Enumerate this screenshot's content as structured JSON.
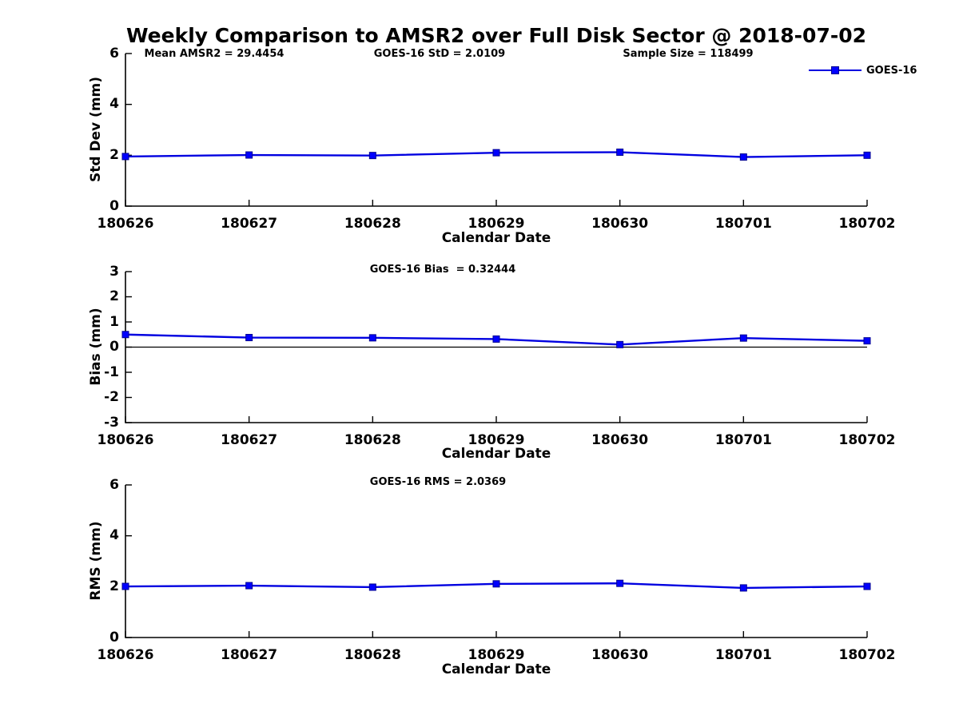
{
  "title": "Weekly Comparison to AMSR2 over Full Disk Sector @ 2018-07-02",
  "legend": {
    "label": "GOES-16"
  },
  "style": {
    "line_color": "#0000E0",
    "marker_fill": "#0000FF",
    "marker_edge": "#000090",
    "axis_color": "#000000",
    "text_color": "#000000"
  },
  "chart_data": [
    {
      "type": "line",
      "name": "std-dev-plot",
      "annotations": [
        "Mean AMSR2 = 29.4454",
        "GOES-16 StD = 2.0109",
        "Sample Size = 118499"
      ],
      "xlabel": "Calendar Date",
      "ylabel": "Std Dev (mm)",
      "ylim": [
        0,
        6
      ],
      "yticks": [
        6,
        4,
        2,
        0
      ],
      "categories": [
        "180626",
        "180627",
        "180628",
        "180629",
        "180630",
        "180701",
        "180702"
      ],
      "series": [
        {
          "name": "GOES-16",
          "values": [
            1.95,
            2.01,
            1.99,
            2.1,
            2.12,
            1.93,
            2.0
          ]
        }
      ],
      "legend_position": "top-right",
      "grid": false
    },
    {
      "type": "line",
      "name": "bias-plot",
      "annotations": [
        "GOES-16 Bias  = 0.32444"
      ],
      "xlabel": "Calendar Date",
      "ylabel": "Bias (mm)",
      "ylim": [
        -3,
        3
      ],
      "yticks": [
        3,
        2,
        1,
        0,
        -1,
        -2,
        -3
      ],
      "zero_line": true,
      "categories": [
        "180626",
        "180627",
        "180628",
        "180629",
        "180630",
        "180701",
        "180702"
      ],
      "series": [
        {
          "name": "GOES-16",
          "values": [
            0.5,
            0.38,
            0.37,
            0.32,
            0.1,
            0.36,
            0.25
          ]
        }
      ],
      "grid": false
    },
    {
      "type": "line",
      "name": "rms-plot",
      "annotations": [
        "GOES-16 RMS = 2.0369"
      ],
      "xlabel": "Calendar Date",
      "ylabel": "RMS (mm)",
      "ylim": [
        0,
        6
      ],
      "yticks": [
        6,
        4,
        2,
        0
      ],
      "categories": [
        "180626",
        "180627",
        "180628",
        "180629",
        "180630",
        "180701",
        "180702"
      ],
      "series": [
        {
          "name": "GOES-16",
          "values": [
            2.01,
            2.04,
            1.98,
            2.11,
            2.13,
            1.95,
            2.01
          ]
        }
      ],
      "grid": false
    }
  ]
}
